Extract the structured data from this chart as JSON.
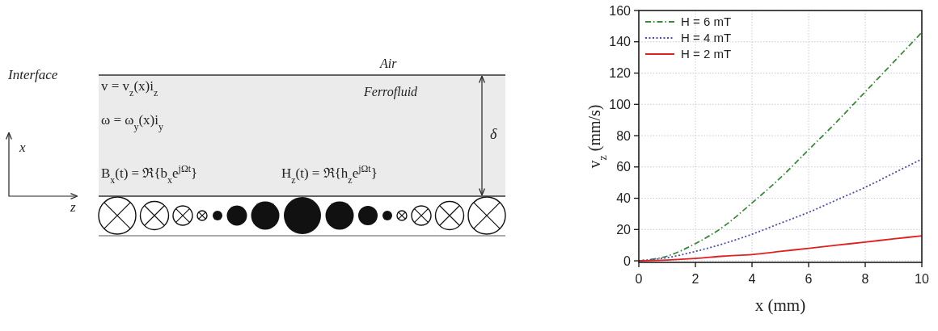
{
  "chart_data": {
    "type": "line",
    "xlabel": "x (mm)",
    "ylabel": "v$_{z}$ (mm/s)",
    "x": [
      0,
      1,
      2,
      3,
      4,
      5,
      6,
      7,
      8,
      9,
      10
    ],
    "series": [
      {
        "name": "H = 6 mT",
        "color": "#3a8a3a",
        "line_style": "dashed",
        "values": [
          0,
          3,
          11,
          22,
          37,
          53,
          71,
          89,
          108,
          127,
          146
        ]
      },
      {
        "name": "H = 4 mT",
        "color": "#4a4ab8",
        "line_style": "dotted",
        "values": [
          0,
          2,
          6,
          11,
          17,
          24,
          31,
          39,
          47,
          56,
          65
        ]
      },
      {
        "name": "H = 2 mT",
        "color": "#e02020",
        "line_style": "solid",
        "values": [
          0,
          0.5,
          1.5,
          3,
          4,
          6,
          8,
          10,
          12,
          14,
          16
        ]
      }
    ],
    "xlim": [
      0,
      10
    ],
    "ylim": [
      -1,
      160
    ],
    "xticks": [
      0,
      2,
      4,
      6,
      8,
      10
    ],
    "yticks": [
      0,
      20,
      40,
      60,
      80,
      100,
      120,
      140,
      160
    ],
    "grid": true,
    "legend": "top left",
    "marker": "none",
    "annotations": [
      "Interface",
      "Air",
      "Ferrofluid",
      "v = v$_{z}$(x)i$_{z}$",
      "ω = ω$_{y}$(x)i$_{y}$",
      "B$_{x}$(t) = ℜ{b$_{x}$e$^{jΩt}$}",
      "H$_{z}$(t) = ℜ{h$_{z}$e$^{jΩt}$}",
      "δ",
      "x",
      "z"
    ]
  }
}
